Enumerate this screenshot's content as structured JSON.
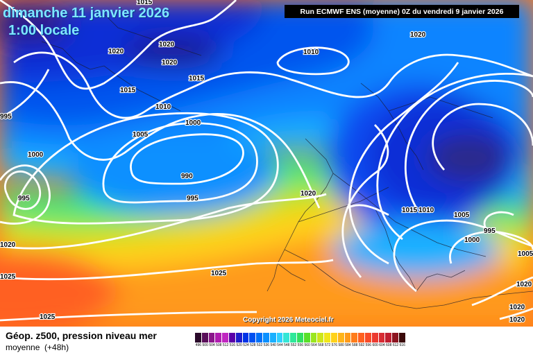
{
  "header": {
    "date_line": "dimanche 11 janvier 2026",
    "time_line": "1:00 locale",
    "run_info": "Run ECMWF ENS (moyenne) 0Z du vendredi 9 janvier 2026"
  },
  "copyright": "Copyright 2026 Meteociel.fr",
  "footer": {
    "title": "Géop. z500, pression niveau mer",
    "subtitle_main": "moyenne",
    "subtitle_lead": "(+48h)"
  },
  "isobar_labels": [
    "1015",
    "1020",
    "1020",
    "1020",
    "1010",
    "1015",
    "1015",
    "1010",
    "1000",
    "1005",
    "1000",
    "990",
    "995",
    "995",
    "995",
    "1020",
    "1020",
    "1015",
    "1010",
    "1005",
    "995",
    "1000",
    "1005",
    "1020",
    "1025",
    "1025",
    "1025",
    "1020",
    "1020",
    "1020"
  ],
  "legend": {
    "values": [
      "496",
      "500",
      "504",
      "508",
      "512",
      "516",
      "520",
      "524",
      "528",
      "532",
      "536",
      "540",
      "544",
      "548",
      "552",
      "556",
      "560",
      "564",
      "568",
      "572",
      "576",
      "580",
      "584",
      "588",
      "592",
      "596",
      "600",
      "604",
      "608",
      "612",
      "616"
    ],
    "colors": [
      "#2a0a2a",
      "#5a0f5a",
      "#8a168a",
      "#b01cb0",
      "#c026c0",
      "#5a00a8",
      "#1e1ecc",
      "#0033e6",
      "#0050f0",
      "#0070f8",
      "#0a90ff",
      "#1ab0ff",
      "#30d0ff",
      "#34e6d6",
      "#2ee89a",
      "#30e060",
      "#58e028",
      "#9ae61e",
      "#cde61a",
      "#f0e61a",
      "#ffd21a",
      "#ffb41a",
      "#ff9a1a",
      "#ff7c1a",
      "#ff6020",
      "#f84a28",
      "#ec3a30",
      "#d82c34",
      "#c01e30",
      "#8c1420",
      "#3a0a0a"
    ]
  }
}
